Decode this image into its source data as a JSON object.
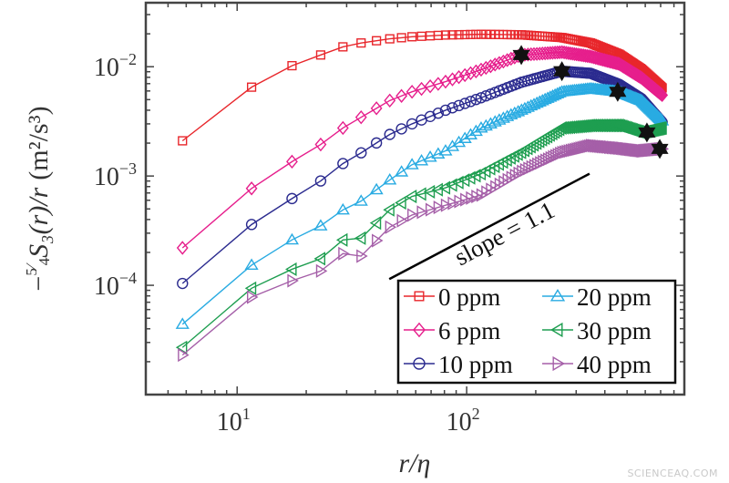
{
  "chart_data": {
    "type": "line",
    "title": "",
    "xlabel": "r/η",
    "ylabel": {
      "sign": "−",
      "num": "5",
      "den": "4",
      "main": "S₃(r)/r",
      "unit": "(m²/s³)"
    },
    "xscale": "log",
    "yscale": "log",
    "xlim": [
      4,
      888
    ],
    "ylim": [
      1e-05,
      0.0385
    ],
    "grid": false,
    "x_ticks": [
      {
        "value": 10,
        "base": "10",
        "exp": "1"
      },
      {
        "value": 100,
        "base": "10",
        "exp": "2"
      }
    ],
    "y_ticks": [
      {
        "value": 0.01,
        "base": "10",
        "exp": "−2"
      },
      {
        "value": 0.001,
        "base": "10",
        "exp": "−3"
      },
      {
        "value": 0.0001,
        "base": "10",
        "exp": "−4"
      }
    ],
    "x": [
      5.78,
      11.56,
      17.3,
      23.1,
      28.9,
      34.7,
      46.2,
      57.8,
      80.9,
      115.6,
      173,
      260,
      347,
      462,
      578,
      711
    ],
    "series": [
      {
        "name": "0 ppm",
        "color": "#e8262b",
        "marker": "square",
        "values": [
          0.0021,
          0.0065,
          0.0102,
          0.0128,
          0.0152,
          0.0165,
          0.018,
          0.0188,
          0.0195,
          0.0198,
          0.0196,
          0.0185,
          0.0165,
          0.013,
          0.0095,
          0.0064
        ]
      },
      {
        "name": "6 ppm",
        "color": "#e61e8c",
        "marker": "diamond",
        "values": [
          0.00022,
          0.00077,
          0.00135,
          0.00194,
          0.00275,
          0.00345,
          0.0049,
          0.0059,
          0.0073,
          0.0094,
          0.0128,
          0.0136,
          0.0124,
          0.0106,
          0.0079,
          0.0055
        ]
      },
      {
        "name": "10 ppm",
        "color": "#2b2b8f",
        "marker": "circle",
        "values": [
          0.000104,
          0.00036,
          0.00062,
          0.0009,
          0.0013,
          0.00163,
          0.0024,
          0.003,
          0.004,
          0.0052,
          0.0072,
          0.0091,
          0.0087,
          0.0069,
          0.0051,
          0.0031
        ]
      },
      {
        "name": "20 ppm",
        "color": "#29abe2",
        "marker": "triangle-up",
        "values": [
          4.4e-05,
          0.000153,
          0.00026,
          0.00035,
          0.00049,
          0.00059,
          0.00092,
          0.00127,
          0.0017,
          0.00275,
          0.004,
          0.0059,
          0.0063,
          0.0059,
          0.0049,
          0.0032
        ]
      },
      {
        "name": "30 ppm",
        "color": "#1e9e50",
        "marker": "triangle-left",
        "values": [
          2.7e-05,
          9.4e-05,
          0.00014,
          0.000175,
          0.00026,
          0.00027,
          0.00049,
          0.00065,
          0.00078,
          0.00105,
          0.00164,
          0.00275,
          0.0029,
          0.0029,
          0.0025,
          0.00275
        ]
      },
      {
        "name": "40 ppm",
        "color": "#a55fa8",
        "marker": "triangle-right",
        "values": [
          2.3e-05,
          7.8e-05,
          0.00011,
          0.000135,
          0.000195,
          0.000185,
          0.00034,
          0.00044,
          0.00054,
          0.00067,
          0.0011,
          0.00164,
          0.0019,
          0.0018,
          0.0017,
          0.00177
        ]
      }
    ],
    "stars": [
      {
        "series": "6 ppm",
        "x": 173,
        "y": 0.0128
      },
      {
        "series": "10 ppm",
        "x": 260,
        "y": 0.0091
      },
      {
        "series": "20 ppm",
        "x": 455,
        "y": 0.0059
      },
      {
        "series": "30 ppm",
        "x": 610,
        "y": 0.0025
      },
      {
        "series": "40 ppm",
        "x": 694,
        "y": 0.00177
      }
    ],
    "slope_line": {
      "x": [
        46,
        343
      ],
      "y": [
        0.000114,
        0.00105
      ],
      "label": "slope = 1.1"
    },
    "legend": {
      "position": "bottom-right",
      "columns": 2
    }
  },
  "watermark": "SCIENCEAQ.COM"
}
